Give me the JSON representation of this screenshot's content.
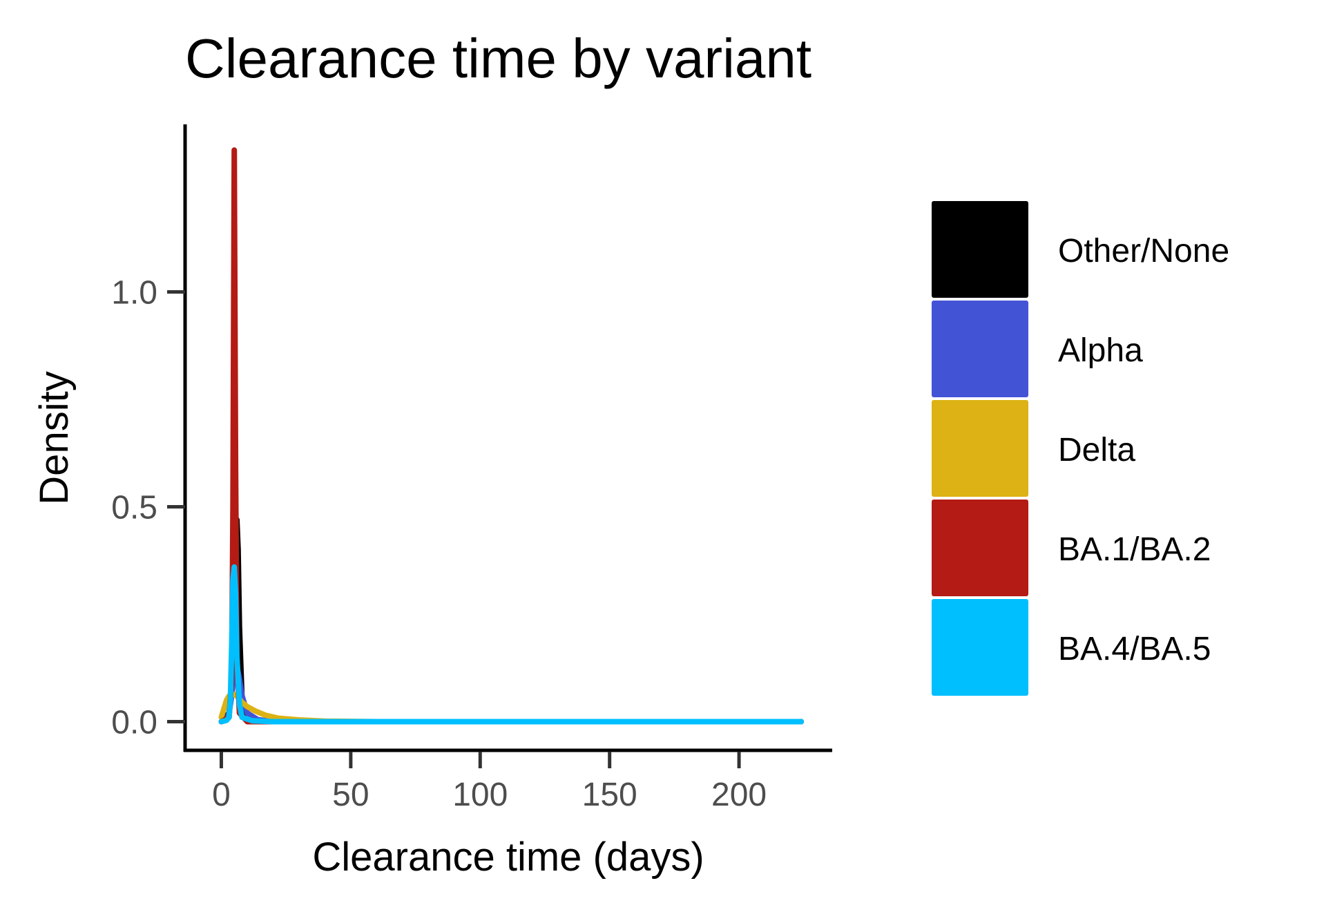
{
  "chart_data": {
    "type": "density",
    "title": "Clearance time by variant",
    "xlabel": "Clearance time (days)",
    "ylabel": "Density",
    "xlim": [
      -14,
      236
    ],
    "ylim": [
      -0.07,
      1.39
    ],
    "x_ticks": [
      0,
      50,
      100,
      150,
      200
    ],
    "x_tick_labels": [
      "0",
      "50",
      "100",
      "150",
      "200"
    ],
    "y_ticks": [
      0.0,
      0.5,
      1.0
    ],
    "y_tick_labels": [
      "0.0",
      "0.5",
      "1.0"
    ],
    "grid": false,
    "legend_position": "right",
    "x_max_data": 224,
    "series": [
      {
        "name": "Other/None",
        "color": "#000000",
        "points": [
          [
            0,
            0
          ],
          [
            3,
            0.02
          ],
          [
            4,
            0.08
          ],
          [
            5,
            0.3
          ],
          [
            5.5,
            0.42
          ],
          [
            6,
            0.47
          ],
          [
            6.5,
            0.4
          ],
          [
            7,
            0.22
          ],
          [
            8,
            0.05
          ],
          [
            10,
            0.005
          ],
          [
            15,
            0
          ],
          [
            224,
            0
          ]
        ]
      },
      {
        "name": "Alpha",
        "color": "#4353d6",
        "points": [
          [
            0,
            0
          ],
          [
            2,
            0.005
          ],
          [
            3,
            0.02
          ],
          [
            4,
            0.06
          ],
          [
            5,
            0.12
          ],
          [
            6,
            0.13
          ],
          [
            7,
            0.1
          ],
          [
            8,
            0.06
          ],
          [
            10,
            0.02
          ],
          [
            14,
            0.005
          ],
          [
            20,
            0
          ],
          [
            224,
            0
          ]
        ]
      },
      {
        "name": "Delta",
        "color": "#dcb214",
        "points": [
          [
            0,
            0.01
          ],
          [
            1,
            0.03
          ],
          [
            2,
            0.05
          ],
          [
            3,
            0.06
          ],
          [
            4,
            0.065
          ],
          [
            6,
            0.06
          ],
          [
            8,
            0.045
          ],
          [
            10,
            0.035
          ],
          [
            13,
            0.025
          ],
          [
            17,
            0.015
          ],
          [
            22,
            0.008
          ],
          [
            30,
            0.004
          ],
          [
            40,
            0.001
          ],
          [
            60,
            0
          ],
          [
            224,
            0
          ]
        ]
      },
      {
        "name": "BA.1/BA.2",
        "color": "#b31b14",
        "points": [
          [
            0,
            0
          ],
          [
            3,
            0.01
          ],
          [
            4,
            0.1
          ],
          [
            4.5,
            0.5
          ],
          [
            5,
            1.33
          ],
          [
            5.5,
            0.6
          ],
          [
            6,
            0.15
          ],
          [
            7,
            0.02
          ],
          [
            10,
            0
          ],
          [
            224,
            0
          ]
        ]
      },
      {
        "name": "BA.4/BA.5",
        "color": "#00bfff",
        "points": [
          [
            0,
            0
          ],
          [
            2,
            0.003
          ],
          [
            3,
            0.01
          ],
          [
            3.5,
            0.05
          ],
          [
            4,
            0.18
          ],
          [
            4.5,
            0.33
          ],
          [
            5,
            0.36
          ],
          [
            5.5,
            0.3
          ],
          [
            6,
            0.15
          ],
          [
            7,
            0.04
          ],
          [
            8,
            0.01
          ],
          [
            12,
            0.002
          ],
          [
            20,
            0
          ],
          [
            224,
            0
          ]
        ]
      }
    ]
  }
}
